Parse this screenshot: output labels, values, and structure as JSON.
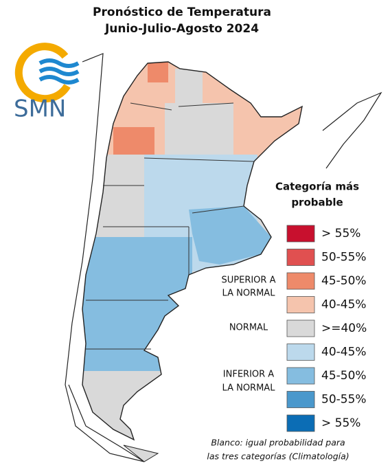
{
  "header": {
    "title_lines": [
      "Pronóstico de Temperatura",
      "Junio-Julio-Agosto 2024"
    ]
  },
  "logo": {
    "text": "SMN"
  },
  "legend": {
    "title_lines": [
      "Categoría más",
      "probable"
    ],
    "items": [
      {
        "label": "> 55%",
        "color": "#c8102e"
      },
      {
        "label": "50-55%",
        "color": "#e05050"
      },
      {
        "label": "45-50%",
        "color": "#ee8a6a"
      },
      {
        "label": "40-45%",
        "color": "#f5c4ad"
      },
      {
        "label": ">=40%",
        "color": "#d9d9d9"
      },
      {
        "label": "40-45%",
        "color": "#bcd9ec"
      },
      {
        "label": "45-50%",
        "color": "#85bde0"
      },
      {
        "label": "50-55%",
        "color": "#4a98cc"
      },
      {
        "label": "> 55%",
        "color": "#0b6db5"
      }
    ],
    "groups": [
      {
        "lines": [
          "SUPERIOR A",
          "LA NORMAL"
        ]
      },
      {
        "lines": [
          "NORMAL"
        ]
      },
      {
        "lines": [
          "INFERIOR A",
          "LA NORMAL"
        ]
      }
    ]
  },
  "footnote": {
    "lines": [
      "Blanco: igual probabilidad para",
      "las tres categorías (Climatología)"
    ]
  }
}
